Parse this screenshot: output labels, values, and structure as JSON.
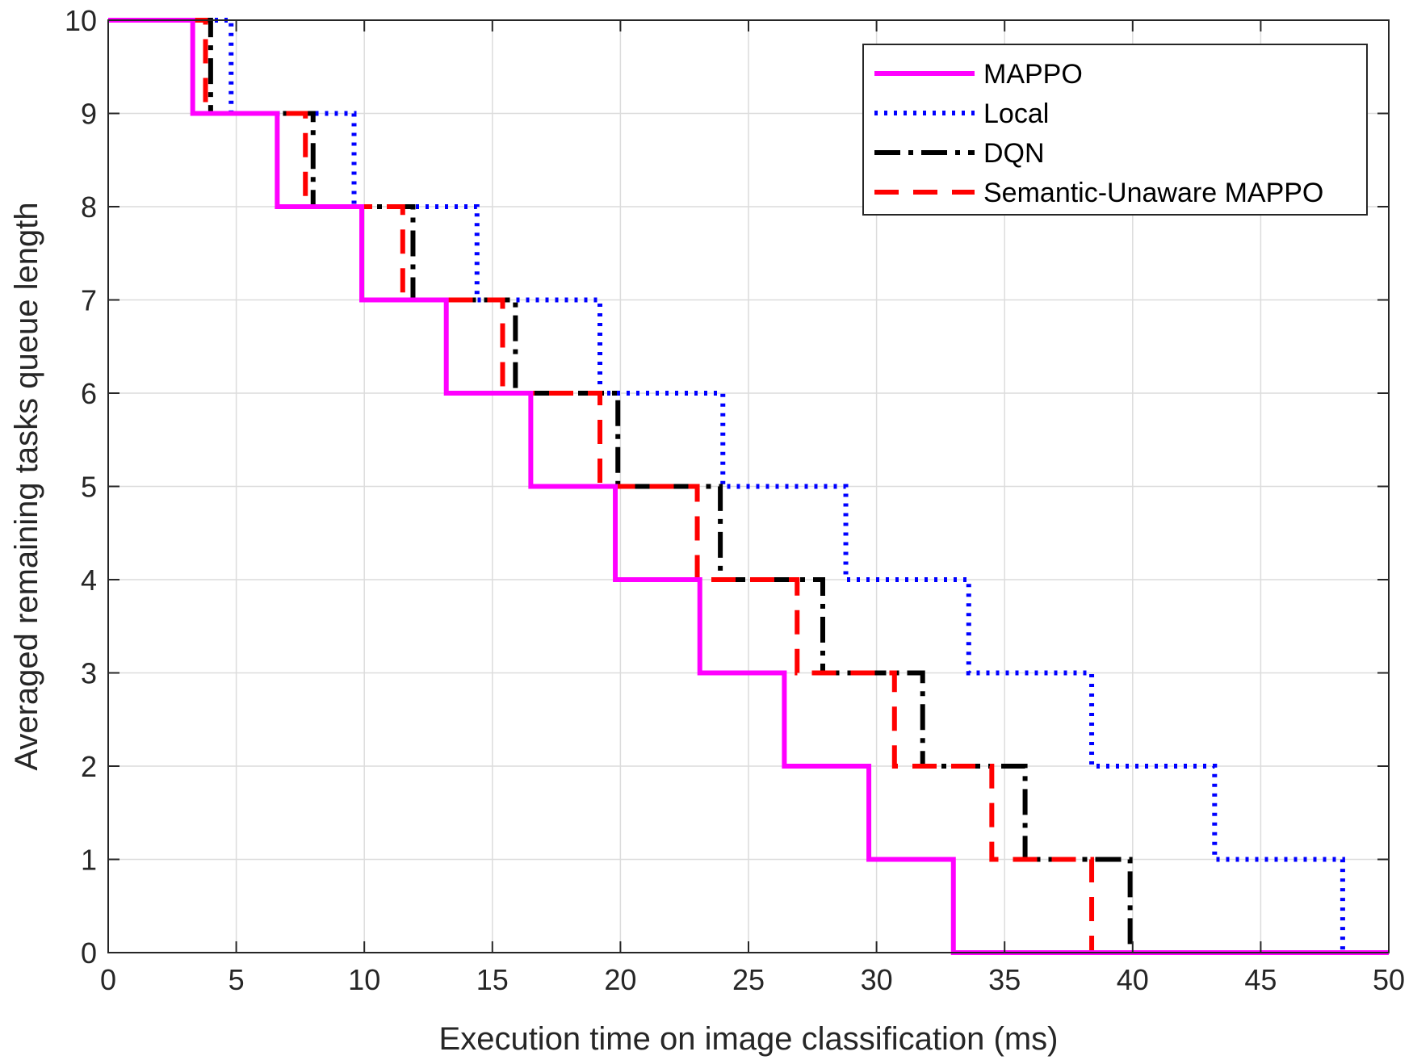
{
  "chart_data": {
    "type": "line",
    "title": "",
    "xlabel": "Execution time on image classification (ms)",
    "ylabel": "Averaged remaining tasks queue length",
    "xlim": [
      0,
      50
    ],
    "ylim": [
      0,
      10
    ],
    "xticks": [
      0,
      5,
      10,
      15,
      20,
      25,
      30,
      35,
      40,
      45,
      50
    ],
    "yticks": [
      0,
      1,
      2,
      3,
      4,
      5,
      6,
      7,
      8,
      9,
      10
    ],
    "grid": true,
    "legend_position": "top-right",
    "series": [
      {
        "name": "MAPPO",
        "color": "#ff00ff",
        "style": "solid",
        "step_times": [
          3.3,
          6.6,
          9.9,
          13.2,
          16.5,
          19.8,
          23.1,
          26.4,
          29.7,
          33.0
        ]
      },
      {
        "name": "Local",
        "color": "#0000ff",
        "style": "dotted",
        "step_times": [
          4.8,
          9.6,
          14.4,
          19.2,
          24.0,
          28.8,
          33.6,
          38.4,
          43.2,
          48.2
        ]
      },
      {
        "name": "DQN",
        "color": "#000000",
        "style": "dashdot",
        "step_times": [
          4.0,
          8.0,
          11.9,
          15.9,
          19.9,
          23.9,
          27.9,
          31.8,
          35.8,
          39.9
        ]
      },
      {
        "name": "Semantic-Unaware MAPPO",
        "color": "#ff0000",
        "style": "dashed",
        "step_times": [
          3.8,
          7.7,
          11.5,
          15.4,
          19.2,
          23.0,
          26.9,
          30.7,
          34.5,
          38.4
        ]
      }
    ]
  }
}
